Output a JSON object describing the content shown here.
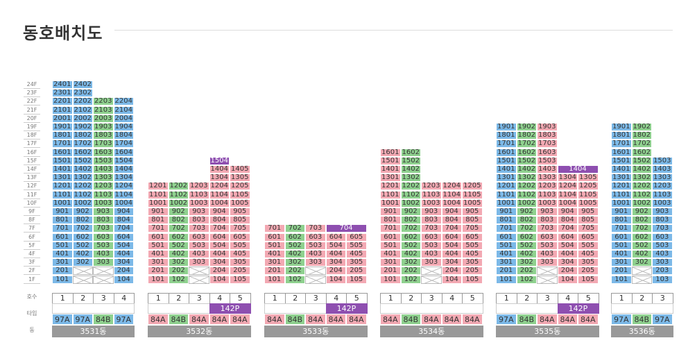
{
  "page": {
    "title": "동호배치도"
  },
  "floors": [
    "24F",
    "23F",
    "22F",
    "21F",
    "20F",
    "19F",
    "18F",
    "17F",
    "16F",
    "15F",
    "14F",
    "13F",
    "12F",
    "11F",
    "10F",
    "9F",
    "8F",
    "7F",
    "6F",
    "5F",
    "4F",
    "3F",
    "2F",
    "1F"
  ],
  "row_labels": {
    "unit": "호수",
    "type": "타입",
    "building": "동"
  },
  "colors": {
    "blue": "#7cb9e8",
    "green": "#8fd18f",
    "pink": "#f3a9b3",
    "purple": "#8e4fb0",
    "gray": "#999999"
  },
  "buildings": [
    {
      "name": "3531동",
      "lines": [
        "1",
        "2",
        "3",
        "4"
      ],
      "types": [
        "97A",
        "97A",
        "84B",
        "97A"
      ],
      "type_colors": [
        "blue",
        "blue",
        "green",
        "blue"
      ],
      "combined": []
    },
    {
      "name": "3532동",
      "lines": [
        "1",
        "2",
        "3",
        "4",
        "5"
      ],
      "types": [
        "84A",
        "84B",
        "84A",
        "84A",
        "84A"
      ],
      "type_colors": [
        "pink",
        "green",
        "pink",
        "pink",
        "pink"
      ],
      "combined": [
        {
          "label": "142P"
        }
      ]
    },
    {
      "name": "3533동",
      "lines": [
        "1",
        "2",
        "3",
        "4",
        "5"
      ],
      "types": [
        "84A",
        "84B",
        "84A",
        "84A",
        "84A"
      ],
      "type_colors": [
        "pink",
        "green",
        "pink",
        "pink",
        "pink"
      ],
      "combined": [
        {
          "label": "142P"
        }
      ]
    },
    {
      "name": "3534동",
      "lines": [
        "1",
        "2",
        "3",
        "4",
        "5"
      ],
      "types": [
        "84A",
        "84B",
        "84A",
        "84A",
        "84A"
      ],
      "type_colors": [
        "pink",
        "green",
        "pink",
        "pink",
        "pink"
      ],
      "combined": []
    },
    {
      "name": "3535동",
      "lines": [
        "1",
        "2",
        "3",
        "4",
        "5"
      ],
      "types": [
        "97A",
        "84B",
        "84A",
        "84A",
        "84A"
      ],
      "type_colors": [
        "blue",
        "green",
        "pink",
        "pink",
        "pink"
      ],
      "combined": [
        {
          "label": "142P"
        }
      ]
    },
    {
      "name": "3536동",
      "lines": [
        "1",
        "2",
        "3"
      ],
      "types": [
        "97A",
        "84B",
        "97A"
      ],
      "type_colors": [
        "blue",
        "green",
        "blue"
      ],
      "combined": []
    }
  ],
  "units": {
    "b0": [
      [
        "2401",
        "2402",
        null,
        null
      ],
      [
        "2301",
        "2302",
        null,
        null
      ],
      [
        "2201",
        "2202",
        "2203",
        "2204"
      ],
      [
        "2101",
        "2102",
        "2103",
        "2104"
      ],
      [
        "2001",
        "2002",
        "2003",
        "2004"
      ],
      [
        "1901",
        "1902",
        "1903",
        "1904"
      ],
      [
        "1801",
        "1802",
        "1803",
        "1804"
      ],
      [
        "1701",
        "1702",
        "1703",
        "1704"
      ],
      [
        "1601",
        "1602",
        "1603",
        "1604"
      ],
      [
        "1501",
        "1502",
        "1503",
        "1504"
      ],
      [
        "1401",
        "1402",
        "1403",
        "1404"
      ],
      [
        "1301",
        "1302",
        "1303",
        "1304"
      ],
      [
        "1201",
        "1202",
        "1203",
        "1204"
      ],
      [
        "1101",
        "1102",
        "1103",
        "1104"
      ],
      [
        "1001",
        "1002",
        "1003",
        "1004"
      ],
      [
        "901",
        "902",
        "903",
        "904"
      ],
      [
        "801",
        "802",
        "803",
        "804"
      ],
      [
        "701",
        "702",
        "703",
        "704"
      ],
      [
        "601",
        "602",
        "603",
        "604"
      ],
      [
        "501",
        "502",
        "503",
        "504"
      ],
      [
        "401",
        "402",
        "403",
        "404"
      ],
      [
        "301",
        "302",
        "303",
        "304"
      ],
      [
        "201",
        "X",
        "X",
        "204"
      ],
      [
        "101",
        "X",
        "X",
        "104"
      ]
    ],
    "b1": [
      [
        null,
        null,
        null,
        null,
        null
      ],
      [
        null,
        null,
        null,
        null,
        null
      ],
      [
        null,
        null,
        null,
        null,
        null
      ],
      [
        null,
        null,
        null,
        null,
        null
      ],
      [
        null,
        null,
        null,
        null,
        null
      ],
      [
        null,
        null,
        null,
        null,
        null
      ],
      [
        null,
        null,
        null,
        null,
        null
      ],
      [
        null,
        null,
        null,
        null,
        null
      ],
      [
        null,
        null,
        null,
        null,
        null
      ],
      [
        null,
        null,
        null,
        "1504",
        null
      ],
      [
        null,
        null,
        null,
        "1404",
        "1405"
      ],
      [
        null,
        null,
        null,
        "1304",
        "1305"
      ],
      [
        "1201",
        "1202",
        "1203",
        "1204",
        "1205"
      ],
      [
        "1101",
        "1102",
        "1103",
        "1104",
        "1105"
      ],
      [
        "1001",
        "1002",
        "1003",
        "1004",
        "1005"
      ],
      [
        "901",
        "902",
        "903",
        "904",
        "905"
      ],
      [
        "801",
        "802",
        "803",
        "804",
        "805"
      ],
      [
        "701",
        "702",
        "703",
        "704",
        "705"
      ],
      [
        "601",
        "602",
        "603",
        "604",
        "605"
      ],
      [
        "501",
        "502",
        "503",
        "504",
        "505"
      ],
      [
        "401",
        "402",
        "403",
        "404",
        "405"
      ],
      [
        "301",
        "302",
        "303",
        "304",
        "305"
      ],
      [
        "201",
        "202",
        "X",
        "204",
        "205"
      ],
      [
        "101",
        "102",
        "X",
        "104",
        "105"
      ]
    ],
    "b2": [
      [
        null,
        null,
        null,
        null,
        null
      ],
      [
        null,
        null,
        null,
        null,
        null
      ],
      [
        null,
        null,
        null,
        null,
        null
      ],
      [
        null,
        null,
        null,
        null,
        null
      ],
      [
        null,
        null,
        null,
        null,
        null
      ],
      [
        null,
        null,
        null,
        null,
        null
      ],
      [
        null,
        null,
        null,
        null,
        null
      ],
      [
        null,
        null,
        null,
        null,
        null
      ],
      [
        null,
        null,
        null,
        null,
        null
      ],
      [
        null,
        null,
        null,
        null,
        null
      ],
      [
        null,
        null,
        null,
        null,
        null
      ],
      [
        null,
        null,
        null,
        null,
        null
      ],
      [
        null,
        null,
        null,
        null,
        null
      ],
      [
        null,
        null,
        null,
        null,
        null
      ],
      [
        null,
        null,
        null,
        null,
        null
      ],
      [
        null,
        null,
        null,
        null,
        null
      ],
      [
        null,
        null,
        null,
        null,
        null
      ],
      [
        "701",
        "702",
        "703",
        "704",
        null
      ],
      [
        "601",
        "602",
        "603",
        "604",
        "605"
      ],
      [
        "501",
        "502",
        "503",
        "504",
        "505"
      ],
      [
        "401",
        "402",
        "403",
        "404",
        "405"
      ],
      [
        "301",
        "302",
        "303",
        "304",
        "305"
      ],
      [
        "201",
        "202",
        "X",
        "204",
        "205"
      ],
      [
        "101",
        "102",
        "X",
        "104",
        "105"
      ]
    ],
    "b3": [
      [
        null,
        null,
        null,
        null,
        null
      ],
      [
        null,
        null,
        null,
        null,
        null
      ],
      [
        null,
        null,
        null,
        null,
        null
      ],
      [
        null,
        null,
        null,
        null,
        null
      ],
      [
        null,
        null,
        null,
        null,
        null
      ],
      [
        null,
        null,
        null,
        null,
        null
      ],
      [
        null,
        null,
        null,
        null,
        null
      ],
      [
        null,
        null,
        null,
        null,
        null
      ],
      [
        "1601",
        "1602",
        null,
        null,
        null
      ],
      [
        "1501",
        "1502",
        null,
        null,
        null
      ],
      [
        "1401",
        "1402",
        null,
        null,
        null
      ],
      [
        "1301",
        "1302",
        null,
        null,
        null
      ],
      [
        "1201",
        "1202",
        "1203",
        "1204",
        "1205"
      ],
      [
        "1101",
        "1102",
        "1103",
        "1104",
        "1105"
      ],
      [
        "1001",
        "1002",
        "1003",
        "1004",
        "1005"
      ],
      [
        "901",
        "902",
        "903",
        "904",
        "905"
      ],
      [
        "801",
        "802",
        "803",
        "804",
        "805"
      ],
      [
        "701",
        "702",
        "703",
        "704",
        "705"
      ],
      [
        "601",
        "602",
        "603",
        "604",
        "605"
      ],
      [
        "501",
        "502",
        "503",
        "504",
        "505"
      ],
      [
        "401",
        "402",
        "403",
        "404",
        "405"
      ],
      [
        "301",
        "302",
        "303",
        "304",
        "305"
      ],
      [
        "201",
        "202",
        "X",
        "204",
        "205"
      ],
      [
        "101",
        "102",
        "X",
        "104",
        "105"
      ]
    ],
    "b4": [
      [
        null,
        null,
        null,
        null,
        null
      ],
      [
        null,
        null,
        null,
        null,
        null
      ],
      [
        null,
        null,
        null,
        null,
        null
      ],
      [
        null,
        null,
        null,
        null,
        null
      ],
      [
        null,
        null,
        null,
        null,
        null
      ],
      [
        "1901",
        "1902",
        "1903",
        null,
        null
      ],
      [
        "1801",
        "1802",
        "1803",
        null,
        null
      ],
      [
        "1701",
        "1702",
        "1703",
        null,
        null
      ],
      [
        "1601",
        "1602",
        "1603",
        null,
        null
      ],
      [
        "1501",
        "1502",
        "1503",
        null,
        null
      ],
      [
        "1401",
        "1402",
        "1403",
        "1404",
        null
      ],
      [
        "1301",
        "1302",
        "1303",
        "1304",
        "1305"
      ],
      [
        "1201",
        "1202",
        "1203",
        "1204",
        "1205"
      ],
      [
        "1101",
        "1102",
        "1103",
        "1104",
        "1105"
      ],
      [
        "1001",
        "1002",
        "1003",
        "1004",
        "1005"
      ],
      [
        "901",
        "902",
        "903",
        "904",
        "905"
      ],
      [
        "801",
        "802",
        "803",
        "804",
        "805"
      ],
      [
        "701",
        "702",
        "703",
        "704",
        "705"
      ],
      [
        "601",
        "602",
        "603",
        "604",
        "605"
      ],
      [
        "501",
        "502",
        "503",
        "504",
        "505"
      ],
      [
        "401",
        "402",
        "403",
        "404",
        "405"
      ],
      [
        "301",
        "302",
        "303",
        "304",
        "305"
      ],
      [
        "201",
        "202",
        "X",
        "204",
        "205"
      ],
      [
        "101",
        "102",
        "X",
        "104",
        "105"
      ]
    ],
    "b5": [
      [
        null,
        null,
        null
      ],
      [
        null,
        null,
        null
      ],
      [
        null,
        null,
        null
      ],
      [
        null,
        null,
        null
      ],
      [
        null,
        null,
        null
      ],
      [
        "1901",
        "1902",
        null
      ],
      [
        "1801",
        "1802",
        null
      ],
      [
        "1701",
        "1702",
        null
      ],
      [
        "1601",
        "1602",
        null
      ],
      [
        "1501",
        "1502",
        "1503"
      ],
      [
        "1401",
        "1402",
        "1403"
      ],
      [
        "1301",
        "1302",
        "1303"
      ],
      [
        "1201",
        "1202",
        "1203"
      ],
      [
        "1101",
        "1102",
        "1103"
      ],
      [
        "1001",
        "1002",
        "1003"
      ],
      [
        "901",
        "902",
        "903"
      ],
      [
        "801",
        "802",
        "803"
      ],
      [
        "701",
        "702",
        "703"
      ],
      [
        "601",
        "602",
        "603"
      ],
      [
        "501",
        "502",
        "503"
      ],
      [
        "401",
        "402",
        "403"
      ],
      [
        "301",
        "302",
        "303"
      ],
      [
        "201",
        "X",
        "203"
      ],
      [
        "101",
        "X",
        "103"
      ]
    ]
  }
}
